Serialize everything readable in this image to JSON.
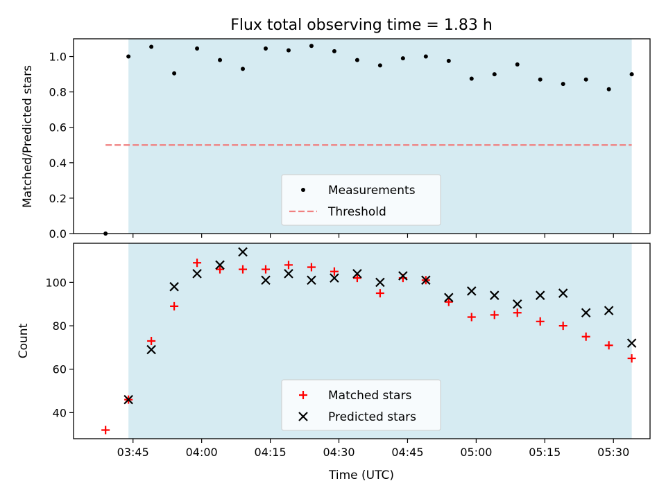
{
  "chart_data": [
    {
      "type": "scatter",
      "title": "Flux total observing time = 1.83 h",
      "ylabel": "Matched/Predicted stars",
      "ylim": [
        0,
        1.1
      ],
      "yticks": [
        "0.0",
        "0.2",
        "0.4",
        "0.6",
        "0.8",
        "1.0"
      ],
      "xlim": [
        "03:32",
        "05:38"
      ],
      "shaded_span": [
        "03:44",
        "05:34"
      ],
      "shade_color": "#add8e6",
      "legend_position": "lower center",
      "series": [
        {
          "name": "Measurements",
          "color": "#000000",
          "marker": "dot",
          "x": [
            "03:39",
            "03:44",
            "03:49",
            "03:54",
            "03:59",
            "04:04",
            "04:09",
            "04:14",
            "04:19",
            "04:24",
            "04:29",
            "04:34",
            "04:39",
            "04:44",
            "04:49",
            "04:54",
            "04:59",
            "05:04",
            "05:09",
            "05:14",
            "05:19",
            "05:24",
            "05:29",
            "05:34"
          ],
          "y": [
            0.0,
            1.0,
            1.055,
            0.905,
            1.045,
            0.98,
            0.93,
            1.045,
            1.035,
            1.06,
            1.03,
            0.98,
            0.95,
            0.99,
            1.0,
            0.975,
            0.875,
            0.9,
            0.955,
            0.87,
            0.845,
            0.87,
            0.815,
            0.9
          ]
        },
        {
          "name": "Threshold",
          "color": "#f08080",
          "style": "dashed",
          "x": [
            "03:39",
            "05:34"
          ],
          "y": [
            0.5,
            0.5
          ]
        }
      ]
    },
    {
      "type": "scatter",
      "ylabel": "Count",
      "xlabel": "Time (UTC)",
      "ylim": [
        28,
        118
      ],
      "yticks": [
        "40",
        "60",
        "80",
        "100"
      ],
      "xticks": [
        "03:45",
        "04:00",
        "04:15",
        "04:30",
        "04:45",
        "05:00",
        "05:15",
        "05:30"
      ],
      "xlim": [
        "03:32",
        "05:38"
      ],
      "shaded_span": [
        "03:44",
        "05:34"
      ],
      "shade_color": "#add8e6",
      "legend_position": "lower center",
      "series": [
        {
          "name": "Matched stars",
          "color": "#ff0000",
          "marker": "plus",
          "x": [
            "03:39",
            "03:44",
            "03:49",
            "03:54",
            "03:59",
            "04:04",
            "04:09",
            "04:14",
            "04:19",
            "04:24",
            "04:29",
            "04:34",
            "04:39",
            "04:44",
            "04:49",
            "04:54",
            "04:59",
            "05:04",
            "05:09",
            "05:14",
            "05:19",
            "05:24",
            "05:29",
            "05:34"
          ],
          "y": [
            32,
            46,
            73,
            89,
            109,
            106,
            106,
            106,
            108,
            107,
            105,
            102,
            95,
            102,
            101,
            91,
            84,
            85,
            86,
            82,
            80,
            75,
            71,
            65
          ]
        },
        {
          "name": "Predicted stars",
          "color": "#000000",
          "marker": "x",
          "x": [
            "03:44",
            "03:49",
            "03:54",
            "03:59",
            "04:04",
            "04:09",
            "04:14",
            "04:19",
            "04:24",
            "04:29",
            "04:34",
            "04:39",
            "04:44",
            "04:49",
            "04:54",
            "04:59",
            "05:04",
            "05:09",
            "05:14",
            "05:19",
            "05:24",
            "05:29",
            "05:34"
          ],
          "y": [
            46,
            69,
            98,
            104,
            108,
            114,
            101,
            104,
            101,
            102,
            104,
            100,
            103,
            101,
            93,
            96,
            94,
            90,
            94,
            95,
            86,
            87,
            72
          ]
        }
      ]
    }
  ]
}
